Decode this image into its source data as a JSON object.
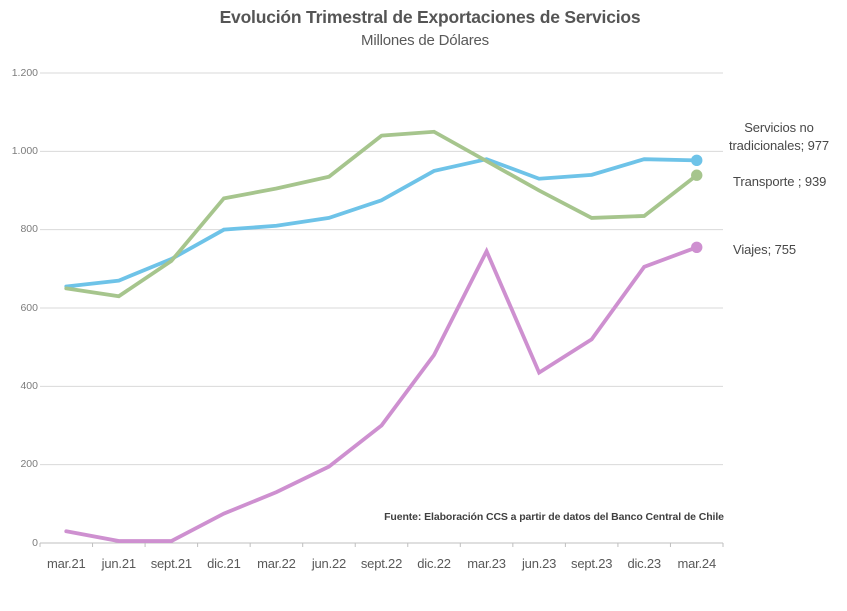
{
  "colors": {
    "blue": "#6EC3E8",
    "green": "#A6C58D",
    "pink": "#CE90D0",
    "text_gray": "#595959",
    "gridline": "#D9D9D9",
    "axis": "#BFBFBF"
  },
  "source_note": "Fuente: Elaboración CCS a partir de datos del Banco Central de Chile",
  "chart_data": {
    "type": "line",
    "title": "Evolución Trimestral de Exportaciones de Servicios",
    "subtitle": "Millones de Dólares",
    "categories": [
      "mar.21",
      "jun.21",
      "sept.21",
      "dic.21",
      "mar.22",
      "jun.22",
      "sept.22",
      "dic.22",
      "mar.23",
      "jun.23",
      "sept.23",
      "dic.23",
      "mar.24"
    ],
    "series": [
      {
        "name": "Servicios no tradicionales",
        "color": "#6EC3E8",
        "values": [
          655,
          670,
          725,
          800,
          810,
          830,
          875,
          950,
          980,
          930,
          940,
          980,
          977
        ],
        "end_value": 977,
        "end_label": "Servicios no tradicionales; 977"
      },
      {
        "name": "Transporte",
        "color": "#A6C58D",
        "values": [
          650,
          630,
          720,
          880,
          905,
          935,
          1040,
          1050,
          975,
          900,
          830,
          835,
          939
        ],
        "end_value": 939,
        "end_label": "Transporte ; 939"
      },
      {
        "name": "Viajes",
        "color": "#CE90D0",
        "values": [
          30,
          5,
          5,
          75,
          130,
          195,
          300,
          480,
          745,
          435,
          520,
          705,
          755
        ],
        "end_value": 755,
        "end_label": "Viajes; 755"
      }
    ],
    "y_ticks": [
      {
        "value": 0,
        "label": "0"
      },
      {
        "value": 200,
        "label": "200"
      },
      {
        "value": 400,
        "label": "400"
      },
      {
        "value": 600,
        "label": "600"
      },
      {
        "value": 800,
        "label": "800"
      },
      {
        "value": 1000,
        "label": "1.000"
      },
      {
        "value": 1200,
        "label": "1.200"
      }
    ],
    "ylim": [
      0,
      1200
    ],
    "grid": true,
    "legend_position": "end-labels-right"
  }
}
